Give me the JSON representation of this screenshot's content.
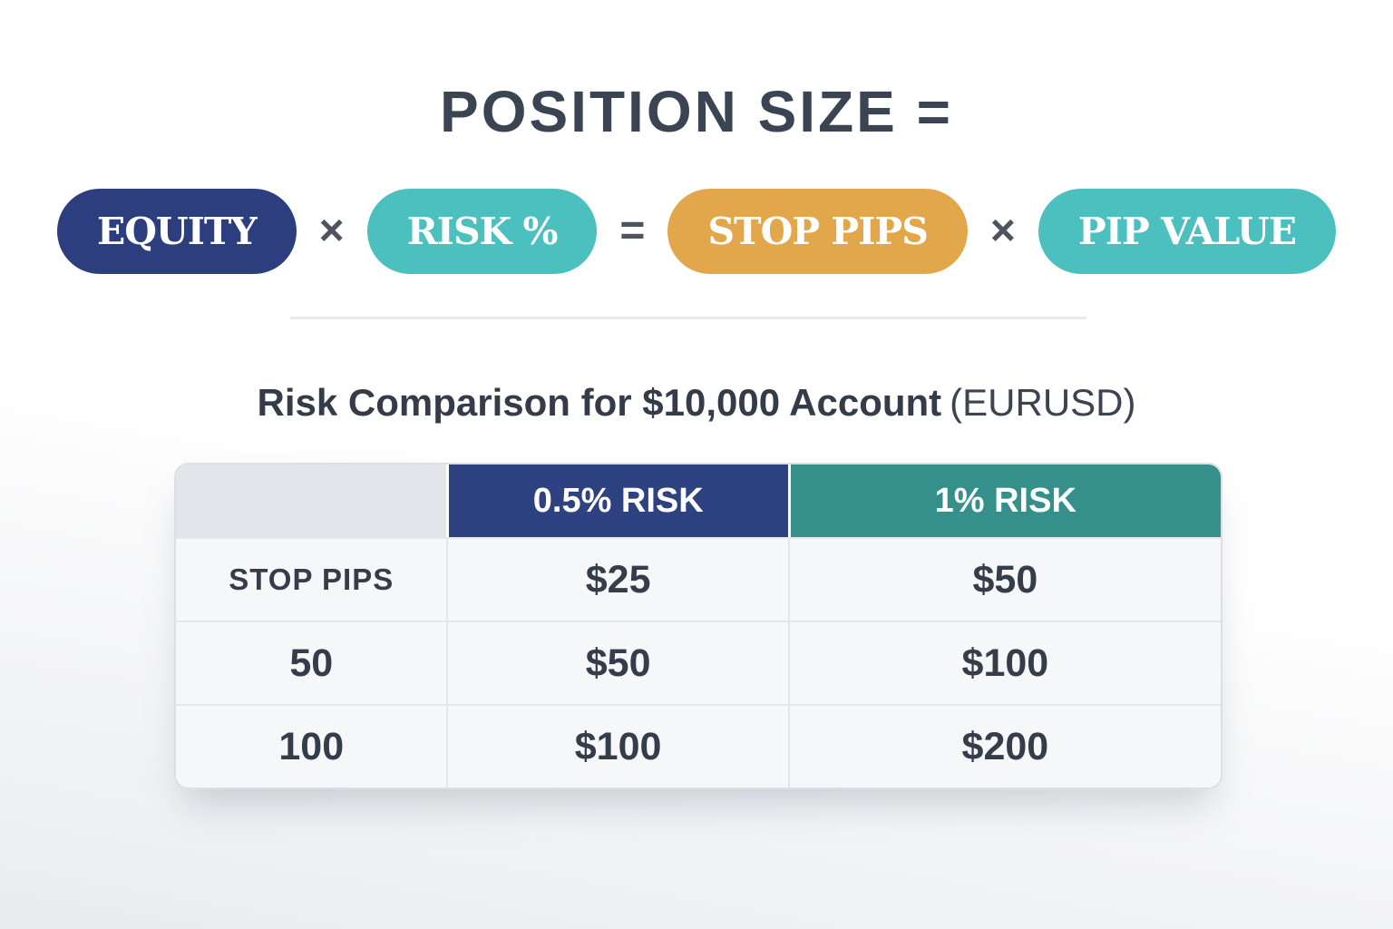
{
  "title": "POSITION SIZE =",
  "formula": {
    "pills": [
      {
        "label": "EQUITY",
        "color": "#2d3e7f"
      },
      {
        "label": "RISK %",
        "color": "#4cc0be"
      },
      {
        "label": "STOP PIPS",
        "color": "#e3a74b"
      },
      {
        "label": "PIP VALUE",
        "color": "#4cc0be"
      }
    ],
    "operators": {
      "multiply": "×",
      "equals": "="
    }
  },
  "subtitle": {
    "bold": "Risk Comparison for $10,000 Account",
    "normal": "(EURUSD)"
  },
  "table": {
    "header": [
      "",
      "0.5% RISK",
      "1% RISK"
    ],
    "header_colors": {
      "blank": "#e2e5e9",
      "risk_half": "#2e4181",
      "risk_one": "#35908c"
    },
    "rows": [
      [
        "STOP PIPS",
        "$25",
        "$50"
      ],
      [
        "50",
        "$50",
        "$100"
      ],
      [
        "100",
        "$100",
        "$200"
      ]
    ]
  },
  "colors": {
    "title_text": "#3a4453",
    "operator_text": "#4e545d",
    "body_text": "#343d49",
    "table_background": "#f6f7f9",
    "table_border": "#dcdfe4",
    "page_background_top": "#ffffff",
    "page_background_bottom": "#e9ecef"
  }
}
